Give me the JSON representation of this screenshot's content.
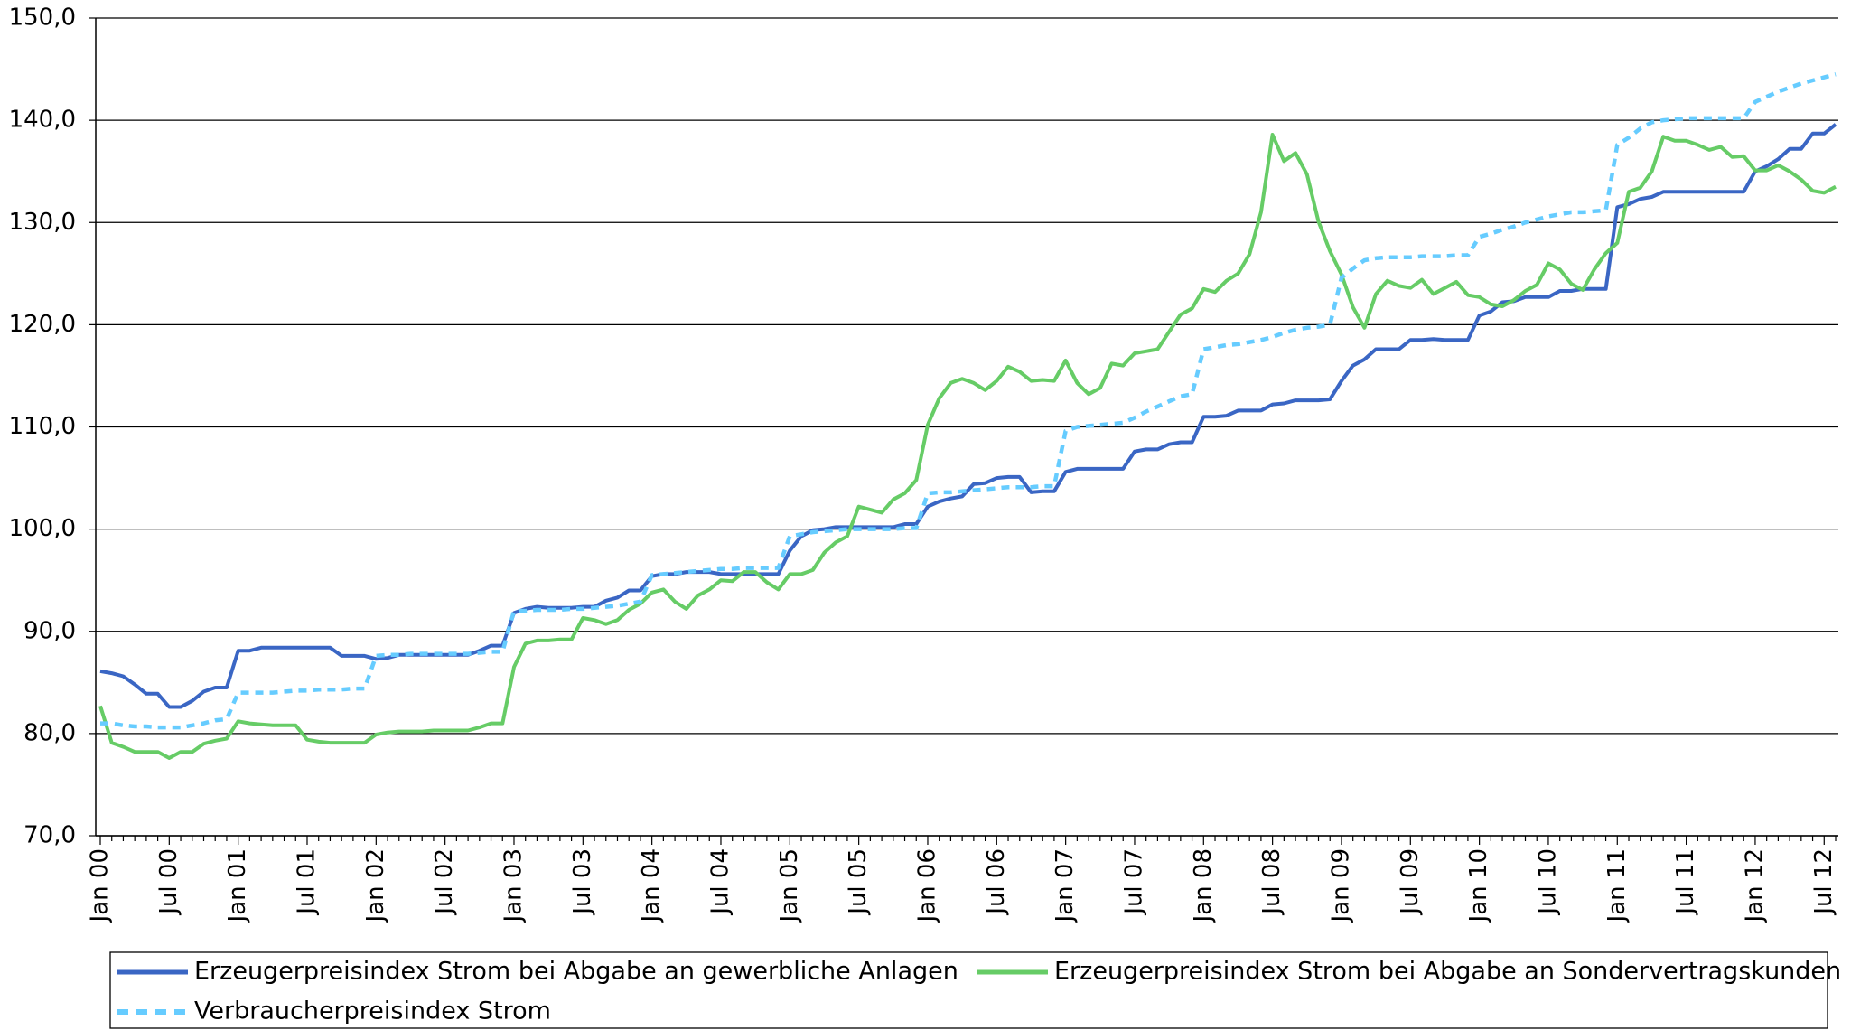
{
  "chart_data": {
    "type": "line",
    "categories": [
      "Jan 00",
      null,
      null,
      null,
      null,
      null,
      "Jul 00",
      null,
      null,
      null,
      null,
      null,
      "Jan 01",
      null,
      null,
      null,
      null,
      null,
      "Jul 01",
      null,
      null,
      null,
      null,
      null,
      "Jan 02",
      null,
      null,
      null,
      null,
      null,
      "Jul 02",
      null,
      null,
      null,
      null,
      null,
      "Jan 03",
      null,
      null,
      null,
      null,
      null,
      "Jul 03",
      null,
      null,
      null,
      null,
      null,
      "Jan 04",
      null,
      null,
      null,
      null,
      null,
      "Jul 04",
      null,
      null,
      null,
      null,
      null,
      "Jan 05",
      null,
      null,
      null,
      null,
      null,
      "Jul 05",
      null,
      null,
      null,
      null,
      null,
      "Jan 06",
      null,
      null,
      null,
      null,
      null,
      "Jul 06",
      null,
      null,
      null,
      null,
      null,
      "Jan 07",
      null,
      null,
      null,
      null,
      null,
      "Jul 07",
      null,
      null,
      null,
      null,
      null,
      "Jan 08",
      null,
      null,
      null,
      null,
      null,
      "Jul 08",
      null,
      null,
      null,
      null,
      null,
      "Jan 09",
      null,
      null,
      null,
      null,
      null,
      "Jul 09",
      null,
      null,
      null,
      null,
      null,
      "Jan 10",
      null,
      null,
      null,
      null,
      null,
      "Jul 10",
      null,
      null,
      null,
      null,
      null,
      "Jan 11",
      null,
      null,
      null,
      null,
      null,
      "Jul 11",
      null,
      null,
      null,
      null,
      null,
      "Jan 12",
      null,
      null,
      null,
      null,
      null,
      "Jul 12",
      null
    ],
    "series": [
      {
        "name": "Erzeugerpreisindex Strom bei Abgabe an gewerbliche Anlagen",
        "color": "#3a66c4",
        "dashed": false,
        "values": [
          86.1,
          85.9,
          85.6,
          84.8,
          83.9,
          83.9,
          82.6,
          82.6,
          83.2,
          84.1,
          84.5,
          84.5,
          88.1,
          88.1,
          88.4,
          88.4,
          88.4,
          88.4,
          88.4,
          88.4,
          88.4,
          87.6,
          87.6,
          87.6,
          87.3,
          87.4,
          87.7,
          87.7,
          87.7,
          87.7,
          87.7,
          87.7,
          87.7,
          88.1,
          88.6,
          88.6,
          91.8,
          92.2,
          92.4,
          92.3,
          92.3,
          92.3,
          92.4,
          92.4,
          93.0,
          93.3,
          94.0,
          94.0,
          95.4,
          95.6,
          95.6,
          95.8,
          95.8,
          95.8,
          95.6,
          95.6,
          95.6,
          95.6,
          95.6,
          95.6,
          97.9,
          99.3,
          99.9,
          100.0,
          100.2,
          100.2,
          100.2,
          100.2,
          100.2,
          100.2,
          100.5,
          100.5,
          102.2,
          102.7,
          103.0,
          103.2,
          104.4,
          104.5,
          105.0,
          105.1,
          105.1,
          103.6,
          103.7,
          103.7,
          105.6,
          105.9,
          105.9,
          105.9,
          105.9,
          105.9,
          107.6,
          107.8,
          107.8,
          108.3,
          108.5,
          108.5,
          111.0,
          111.0,
          111.1,
          111.6,
          111.6,
          111.6,
          112.2,
          112.3,
          112.6,
          112.6,
          112.6,
          112.7,
          114.5,
          116.0,
          116.6,
          117.6,
          117.6,
          117.6,
          118.5,
          118.5,
          118.6,
          118.5,
          118.5,
          118.5,
          120.9,
          121.3,
          122.2,
          122.3,
          122.7,
          122.7,
          122.7,
          123.3,
          123.3,
          123.5,
          123.5,
          123.5,
          131.5,
          131.8,
          132.3,
          132.5,
          133.0,
          133.0,
          133.0,
          133.0,
          133.0,
          133.0,
          133.0,
          133.0,
          135.0,
          135.5,
          136.2,
          137.2,
          137.2,
          138.7,
          138.7,
          139.6
        ]
      },
      {
        "name": "Erzeugerpreisindex Strom bei Abgabe an Sondervertragskunden",
        "color": "#66cc66",
        "dashed": false,
        "values": [
          82.7,
          79.1,
          78.7,
          78.2,
          78.2,
          78.2,
          77.6,
          78.2,
          78.2,
          79.0,
          79.3,
          79.5,
          81.2,
          81.0,
          80.9,
          80.8,
          80.8,
          80.8,
          79.4,
          79.2,
          79.1,
          79.1,
          79.1,
          79.1,
          79.9,
          80.1,
          80.2,
          80.2,
          80.2,
          80.3,
          80.3,
          80.3,
          80.3,
          80.6,
          81.0,
          81.0,
          86.5,
          88.8,
          89.1,
          89.1,
          89.2,
          89.2,
          91.3,
          91.1,
          90.7,
          91.1,
          92.1,
          92.7,
          93.8,
          94.1,
          92.9,
          92.2,
          93.5,
          94.1,
          95.0,
          94.9,
          95.8,
          95.8,
          94.8,
          94.1,
          95.6,
          95.6,
          96.0,
          97.7,
          98.7,
          99.3,
          102.2,
          101.9,
          101.6,
          102.9,
          103.5,
          104.8,
          110.2,
          112.8,
          114.3,
          114.7,
          114.3,
          113.6,
          114.5,
          115.9,
          115.4,
          114.5,
          114.6,
          114.5,
          116.5,
          114.3,
          113.2,
          113.8,
          116.2,
          116.0,
          117.2,
          117.4,
          117.6,
          119.3,
          121.0,
          121.6,
          123.5,
          123.2,
          124.3,
          125.0,
          126.9,
          131.0,
          138.6,
          136.0,
          136.8,
          134.7,
          130.1,
          127.2,
          124.9,
          121.7,
          119.7,
          123.0,
          124.3,
          123.8,
          123.6,
          124.4,
          123.0,
          123.6,
          124.2,
          122.9,
          122.7,
          122.0,
          121.8,
          122.4,
          123.3,
          123.9,
          126.0,
          125.4,
          124.0,
          123.4,
          125.4,
          127.0,
          128.0,
          133.0,
          133.4,
          135.0,
          138.4,
          138.0,
          138.0,
          137.6,
          137.1,
          137.4,
          136.4,
          136.5,
          135.1,
          135.1,
          135.6,
          135.0,
          134.2,
          133.1,
          132.9,
          133.5
        ]
      },
      {
        "name": "Verbraucherpreisindex Strom",
        "color": "#66ccff",
        "dashed": true,
        "values": [
          81.0,
          81.0,
          80.8,
          80.7,
          80.7,
          80.6,
          80.6,
          80.6,
          80.8,
          81.0,
          81.3,
          81.4,
          84.0,
          84.0,
          84.0,
          84.0,
          84.1,
          84.2,
          84.2,
          84.3,
          84.3,
          84.3,
          84.4,
          84.4,
          87.6,
          87.7,
          87.7,
          87.8,
          87.8,
          87.8,
          87.8,
          87.8,
          87.8,
          87.9,
          88.0,
          88.0,
          92.0,
          92.0,
          92.1,
          92.1,
          92.1,
          92.2,
          92.2,
          92.3,
          92.4,
          92.5,
          92.7,
          92.9,
          95.5,
          95.6,
          95.7,
          95.8,
          95.9,
          96.0,
          96.1,
          96.1,
          96.2,
          96.2,
          96.2,
          96.2,
          99.3,
          99.5,
          99.7,
          99.8,
          99.9,
          100.0,
          100.0,
          100.0,
          100.0,
          100.0,
          100.1,
          100.1,
          103.5,
          103.6,
          103.6,
          103.7,
          103.8,
          103.9,
          104.0,
          104.1,
          104.1,
          104.1,
          104.2,
          104.2,
          109.6,
          110.0,
          110.1,
          110.2,
          110.3,
          110.4,
          110.9,
          111.5,
          112.0,
          112.5,
          113.0,
          113.2,
          117.6,
          117.8,
          118.0,
          118.1,
          118.3,
          118.5,
          118.8,
          119.2,
          119.5,
          119.7,
          119.8,
          120.0,
          124.6,
          125.5,
          126.3,
          126.5,
          126.6,
          126.6,
          126.6,
          126.7,
          126.7,
          126.7,
          126.8,
          126.8,
          128.6,
          128.9,
          129.3,
          129.6,
          130.0,
          130.3,
          130.6,
          130.8,
          131.0,
          131.0,
          131.1,
          131.2,
          137.6,
          138.3,
          139.2,
          139.8,
          140.0,
          140.1,
          140.2,
          140.2,
          140.2,
          140.2,
          140.2,
          140.2,
          141.8,
          142.3,
          142.8,
          143.2,
          143.6,
          143.9,
          144.2,
          144.5
        ]
      }
    ],
    "ylim": [
      70,
      150
    ],
    "yticks": [
      {
        "value": 70,
        "label": "70,0"
      },
      {
        "value": 80,
        "label": "80,0"
      },
      {
        "value": 90,
        "label": "90,0"
      },
      {
        "value": 100,
        "label": "100,0"
      },
      {
        "value": 110,
        "label": "110,0"
      },
      {
        "value": 120,
        "label": "120,0"
      },
      {
        "value": 130,
        "label": "130,0"
      },
      {
        "value": 140,
        "label": "140,0"
      },
      {
        "value": 150,
        "label": "150,0"
      }
    ],
    "grid": true
  }
}
